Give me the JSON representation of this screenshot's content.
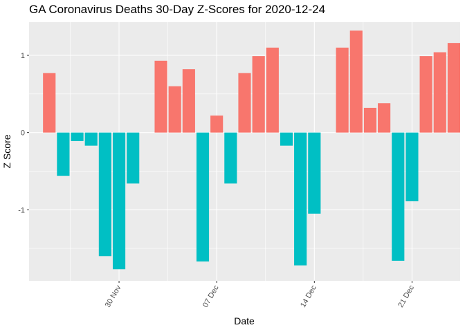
{
  "chart_data": {
    "type": "bar",
    "title": "GA Coronavirus Deaths 30-Day Z-Scores for 2020-12-24",
    "xlabel": "Date",
    "ylabel": "Z Score",
    "x_axis": "date",
    "x_range": [
      "2020-11-24",
      "2020-12-24"
    ],
    "ylim": [
      -1.92,
      1.43
    ],
    "grid": true,
    "legend": "none",
    "positive_color": "#F8766D",
    "negative_color": "#00BFC4",
    "panel_background": "#EBEBEB",
    "y_ticks": [
      {
        "value": 1,
        "label": "1"
      },
      {
        "value": 0,
        "label": "0"
      },
      {
        "value": -1,
        "label": "-1"
      }
    ],
    "x_ticks": [
      {
        "date": "2020-11-30",
        "label": "30 Nov"
      },
      {
        "date": "2020-12-07",
        "label": "07 Dec"
      },
      {
        "date": "2020-12-14",
        "label": "14 Dec"
      },
      {
        "date": "2020-12-21",
        "label": "21 Dec"
      }
    ],
    "x": [
      "2020-11-25",
      "2020-11-26",
      "2020-11-27",
      "2020-11-28",
      "2020-11-29",
      "2020-11-30",
      "2020-12-01",
      "2020-12-02",
      "2020-12-03",
      "2020-12-04",
      "2020-12-05",
      "2020-12-06",
      "2020-12-07",
      "2020-12-08",
      "2020-12-09",
      "2020-12-10",
      "2020-12-11",
      "2020-12-12",
      "2020-12-13",
      "2020-12-14",
      "2020-12-15",
      "2020-12-16",
      "2020-12-17",
      "2020-12-18",
      "2020-12-19",
      "2020-12-20",
      "2020-12-21",
      "2020-12-22",
      "2020-12-23",
      "2020-12-24"
    ],
    "values": [
      0.77,
      -0.56,
      -0.11,
      -0.17,
      -1.6,
      -1.77,
      -0.66,
      0.0,
      0.93,
      0.6,
      0.82,
      -1.67,
      0.22,
      -0.66,
      0.77,
      0.99,
      1.1,
      -0.17,
      -1.72,
      -1.05,
      0.0,
      1.1,
      1.32,
      0.32,
      0.38,
      -1.66,
      -0.89,
      0.99,
      1.04,
      1.16
    ]
  }
}
